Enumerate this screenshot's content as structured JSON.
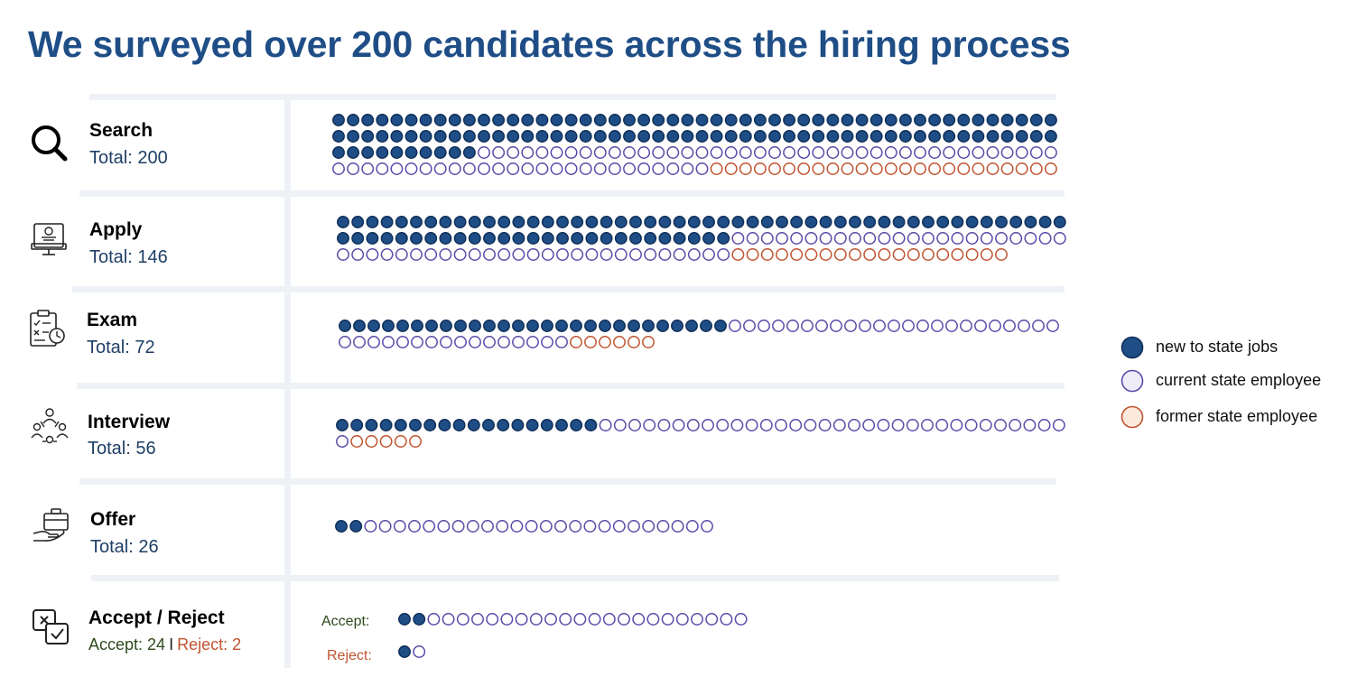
{
  "title": "We surveyed over 200 candidates across the hiring process",
  "colors": {
    "new": "#1f4e87",
    "new_stroke": "#0f2e57",
    "current_fill": "#ffffff",
    "current_stroke": "#5b4aa8",
    "former_fill": "#ffffff",
    "former_stroke": "#c0532f",
    "legend_current_fill": "#eeecf9",
    "legend_former_fill": "#fbe9dc"
  },
  "stages": [
    {
      "name": "Search",
      "total_label": "Total: 200",
      "icon": "search-icon"
    },
    {
      "name": "Apply",
      "total_label": "Total: 146",
      "icon": "computer-apply-icon"
    },
    {
      "name": "Exam",
      "total_label": "Total: 72",
      "icon": "clipboard-exam-icon"
    },
    {
      "name": "Interview",
      "total_label": "Total: 56",
      "icon": "interview-people-icon"
    },
    {
      "name": "Offer",
      "total_label": "Total: 26",
      "icon": "briefcase-offer-icon"
    }
  ],
  "accept_reject": {
    "name": "Accept / Reject",
    "accept_total": "Accept: 24",
    "separator": "I",
    "reject_total": "Reject: 2",
    "accept_row_label": "Accept:",
    "reject_row_label": "Reject:",
    "icon": "accept-reject-icon"
  },
  "legend": [
    {
      "key": "new",
      "label": "new to state jobs"
    },
    {
      "key": "current",
      "label": "current state employee"
    },
    {
      "key": "former",
      "label": "former state employee"
    }
  ],
  "chart_data": {
    "type": "dot-matrix",
    "categories": [
      "Search",
      "Apply",
      "Exam",
      "Interview",
      "Offer",
      "Accept",
      "Reject"
    ],
    "series": [
      {
        "name": "new to state jobs",
        "values": [
          110,
          77,
          27,
          18,
          2,
          2,
          1
        ]
      },
      {
        "name": "current state employee",
        "values": [
          66,
          50,
          39,
          33,
          24,
          22,
          1
        ]
      },
      {
        "name": "former state employee",
        "values": [
          24,
          19,
          6,
          5,
          0,
          0,
          0
        ]
      }
    ],
    "legend": "right"
  }
}
